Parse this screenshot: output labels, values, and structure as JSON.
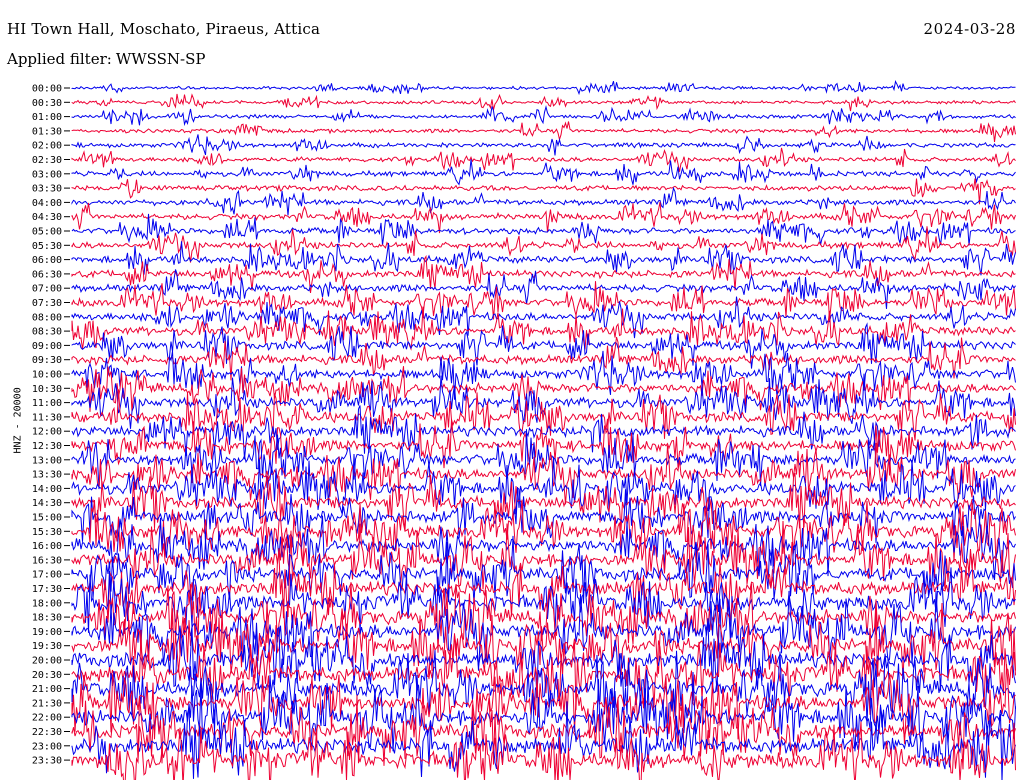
{
  "header": {
    "station": "HI Town Hall, Moschato, Piraeus, Attica",
    "date": "2024-03-28",
    "filter_label": "Applied filter:",
    "filter_value": "WWSSN-SP"
  },
  "side_label": "HNZ - 20000",
  "chart_data": {
    "type": "line",
    "title": "HI Town Hall, Moschato, Piraeus, Attica",
    "ylabel": "HNZ - 20000",
    "tick_labels": [
      "00:00",
      "00:30",
      "01:00",
      "01:30",
      "02:00",
      "02:30",
      "03:00",
      "03:30",
      "04:00",
      "04:30",
      "05:00",
      "05:30",
      "06:00",
      "06:30",
      "07:00",
      "07:30",
      "08:00",
      "08:30",
      "09:00",
      "09:30",
      "10:00",
      "10:30",
      "11:00",
      "11:30",
      "12:00",
      "12:30",
      "13:00",
      "13:30",
      "14:00",
      "14:30",
      "15:00",
      "15:30",
      "16:00",
      "16:30",
      "17:00",
      "17:30",
      "18:00",
      "18:30",
      "19:00",
      "19:30",
      "20:00",
      "20:30",
      "21:00",
      "21:30",
      "22:00",
      "22:30",
      "23:00",
      "23:30"
    ],
    "series_colors": [
      "#0000ee",
      "#ee0033"
    ],
    "grid": false,
    "rows": 48
  }
}
